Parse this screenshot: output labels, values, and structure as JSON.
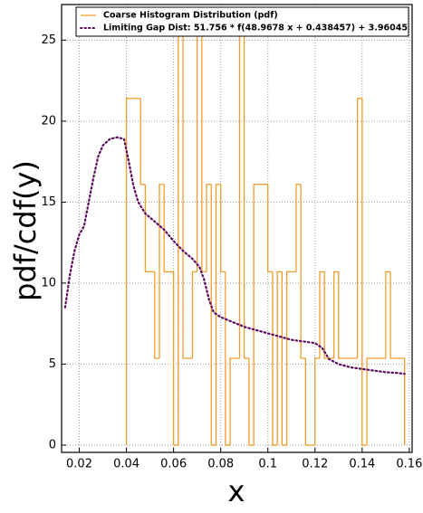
{
  "chart_data": {
    "type": "histogram",
    "xlabel": "x",
    "ylabel": "pdf/cdf(y)",
    "xlim": [
      0.0125,
      0.1612
    ],
    "ylim": [
      -0.45,
      27.2
    ],
    "xticks": [
      0.02,
      0.04,
      0.06,
      0.08,
      0.1,
      0.12,
      0.14,
      0.16
    ],
    "yticks": [
      0,
      5,
      10,
      15,
      20,
      25
    ],
    "grid": true,
    "legend": "upper right",
    "series": [
      {
        "name": "Coarse Histogram Distribution (pdf)",
        "type": "histogram",
        "color": "#f39c2b",
        "bins": [
          0.04,
          0.042,
          0.044,
          0.046,
          0.048,
          0.05,
          0.052,
          0.054,
          0.056,
          0.058,
          0.06,
          0.062,
          0.064,
          0.066,
          0.068,
          0.07,
          0.072,
          0.074,
          0.076,
          0.078,
          0.08,
          0.082,
          0.084,
          0.086,
          0.088,
          0.09,
          0.092,
          0.094,
          0.096,
          0.098,
          0.1,
          0.102,
          0.104,
          0.106,
          0.108,
          0.11,
          0.112,
          0.114,
          0.116,
          0.118,
          0.12,
          0.122,
          0.124,
          0.126,
          0.128,
          0.13,
          0.132,
          0.134,
          0.136,
          0.138,
          0.14,
          0.142,
          0.144,
          0.146,
          0.148,
          0.15,
          0.152,
          0.154,
          0.156,
          0.158
        ],
        "values": [
          21.4,
          21.4,
          21.4,
          16.1,
          10.7,
          10.7,
          5.36,
          16.1,
          10.7,
          10.7,
          0,
          26.8,
          5.36,
          5.36,
          10.7,
          26.8,
          10.7,
          16.1,
          0,
          16.1,
          10.7,
          0,
          5.36,
          5.36,
          26.8,
          5.36,
          0,
          16.1,
          16.1,
          16.1,
          10.7,
          0,
          10.7,
          0,
          10.7,
          10.7,
          16.1,
          5.36,
          0,
          0,
          5.36,
          10.7,
          5.36,
          5.36,
          10.7,
          5.36,
          5.36,
          5.36,
          5.36,
          21.4,
          0,
          5.36,
          5.36,
          5.36,
          5.36,
          10.7,
          5.36,
          5.36,
          5.36
        ]
      },
      {
        "name": "Limiting Gap Dist: 51.756 * f(48.9678 x + 0.438457) + 3.96045",
        "type": "line",
        "color": "#5b0a5e",
        "x": [
          0.014,
          0.016,
          0.018,
          0.02,
          0.022,
          0.024,
          0.026,
          0.028,
          0.03,
          0.033,
          0.036,
          0.039,
          0.041,
          0.043,
          0.045,
          0.048,
          0.052,
          0.056,
          0.06,
          0.064,
          0.068,
          0.071,
          0.073,
          0.075,
          0.077,
          0.08,
          0.085,
          0.09,
          0.095,
          0.1,
          0.105,
          0.11,
          0.115,
          0.12,
          0.123,
          0.126,
          0.13,
          0.135,
          0.14,
          0.145,
          0.15,
          0.155,
          0.158
        ],
        "values": [
          8.5,
          10.5,
          12,
          13,
          13.5,
          15,
          16.5,
          17.8,
          18.5,
          18.9,
          19,
          18.9,
          17.5,
          16,
          15,
          14.3,
          13.8,
          13.3,
          12.6,
          12,
          11.5,
          11,
          10.2,
          9,
          8.2,
          7.9,
          7.6,
          7.3,
          7.1,
          6.9,
          6.7,
          6.5,
          6.4,
          6.3,
          6,
          5.3,
          5,
          4.8,
          4.7,
          4.6,
          4.5,
          4.45,
          4.4
        ]
      }
    ]
  }
}
